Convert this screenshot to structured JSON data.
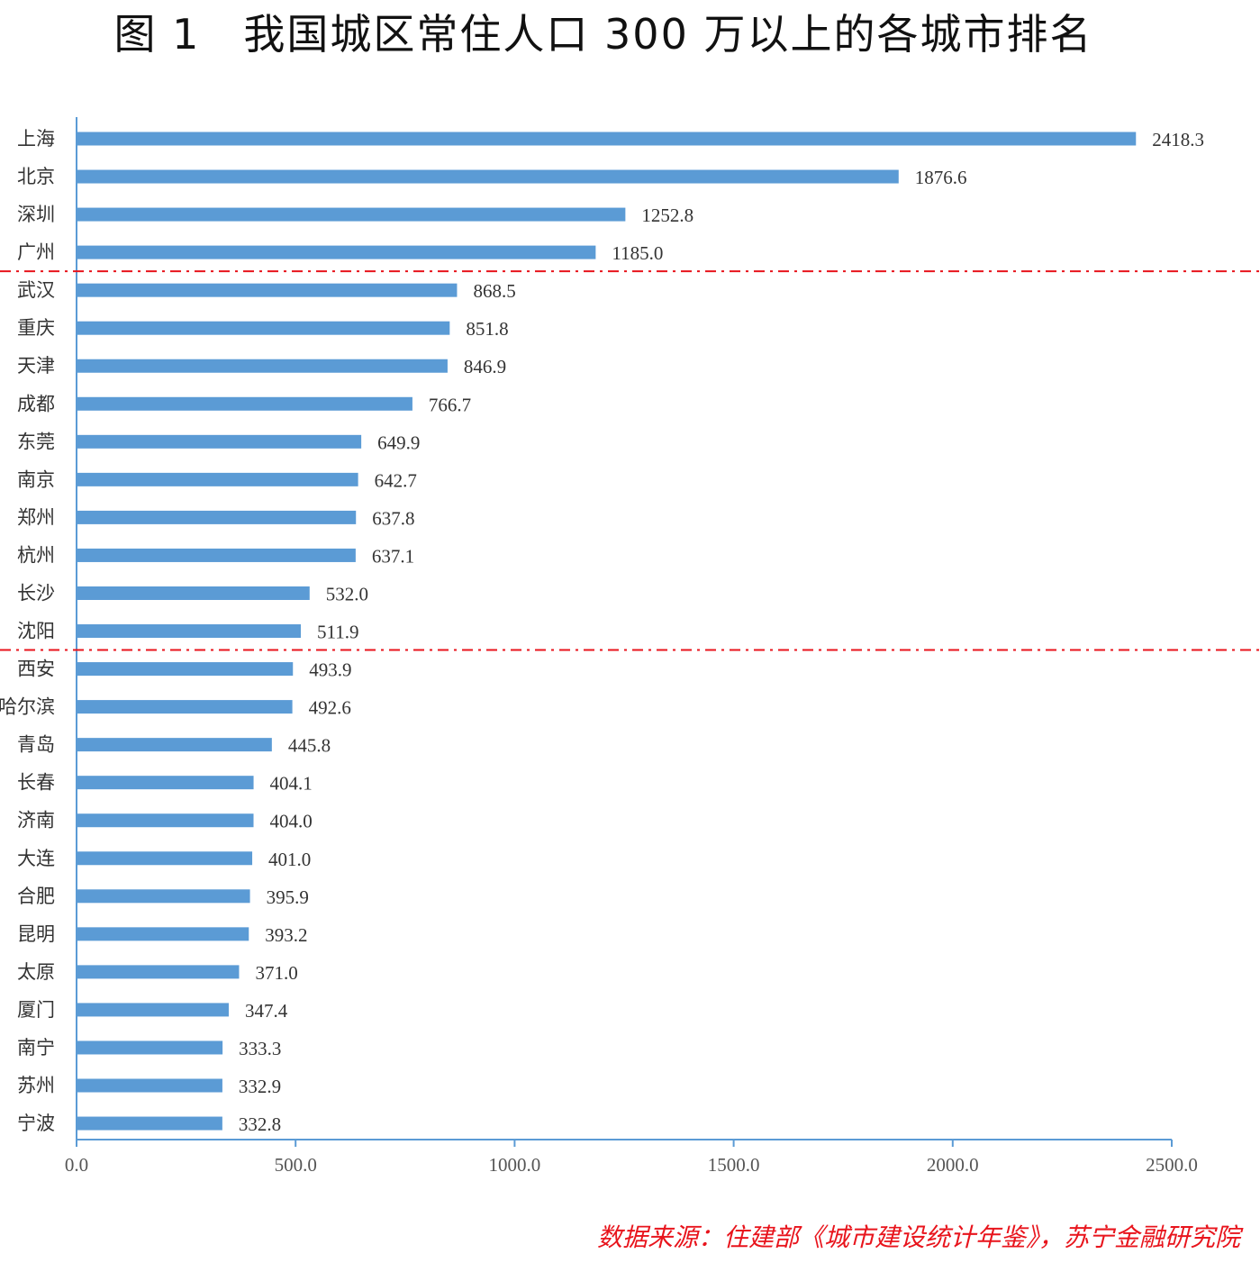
{
  "title": "图 1　我国城区常住人口 300 万以上的各城市排名",
  "source": "数据来源：住建部《城市建设统计年鉴》，苏宁金融研究院",
  "colors": {
    "bar": "#5b9bd5",
    "axis": "#5b9bd5",
    "divider": "#e8141c",
    "source": "#e8141c"
  },
  "chart_data": {
    "type": "bar",
    "orientation": "horizontal",
    "categories": [
      "上海",
      "北京",
      "深圳",
      "广州",
      "武汉",
      "重庆",
      "天津",
      "成都",
      "东莞",
      "南京",
      "郑州",
      "杭州",
      "长沙",
      "沈阳",
      "西安",
      "哈尔滨",
      "青岛",
      "长春",
      "济南",
      "大连",
      "合肥",
      "昆明",
      "太原",
      "厦门",
      "南宁",
      "苏州",
      "宁波"
    ],
    "values": [
      2418.3,
      1876.6,
      1252.8,
      1185.0,
      868.5,
      851.8,
      846.9,
      766.7,
      649.9,
      642.7,
      637.8,
      637.1,
      532.0,
      511.9,
      493.9,
      492.6,
      445.8,
      404.1,
      404.0,
      401.0,
      395.9,
      393.2,
      371.0,
      347.4,
      333.3,
      332.9,
      332.8
    ],
    "value_labels": [
      "2418.3",
      "1876.6",
      "1252.8",
      "1185.0",
      "868.5",
      "851.8",
      "846.9",
      "766.7",
      "649.9",
      "642.7",
      "637.8",
      "637.1",
      "532.0",
      "511.9",
      "493.9",
      "492.6",
      "445.8",
      "404.1",
      "404.0",
      "401.0",
      "395.9",
      "393.2",
      "371.0",
      "347.4",
      "333.3",
      "332.9",
      "332.8"
    ],
    "xticks": [
      0,
      500,
      1000,
      1500,
      2000,
      2500
    ],
    "xtick_labels": [
      "0.0",
      "500.0",
      "1000.0",
      "1500.0",
      "2000.0",
      "2500.0"
    ],
    "xlim": [
      0,
      2500
    ],
    "grid": false,
    "legend": "none",
    "divider_after": [
      "广州",
      "沈阳"
    ]
  }
}
